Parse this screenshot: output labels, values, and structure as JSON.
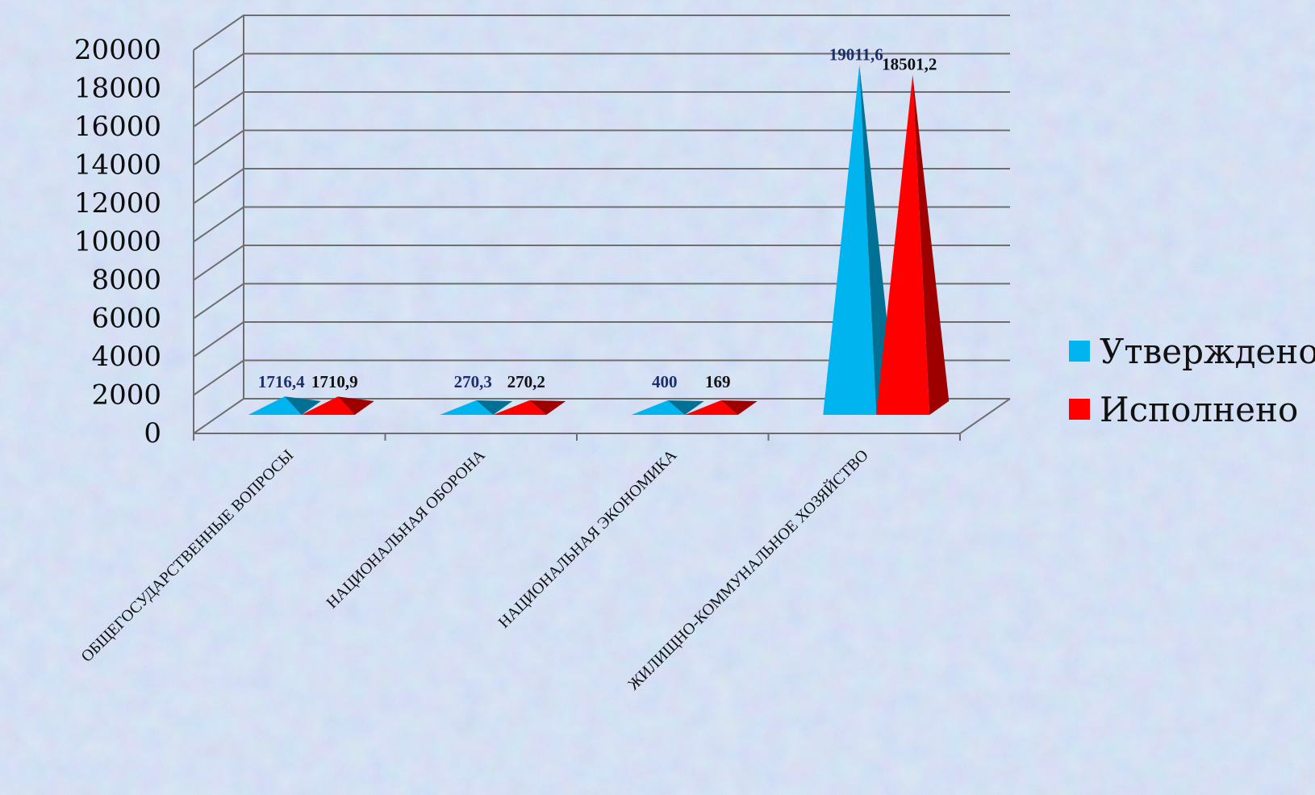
{
  "chart_data": {
    "type": "bar",
    "bar_shape": "pyramid-3d",
    "categories": [
      "ОБЩЕГОСУДАРСТВЕННЫЕ ВОПРОСЫ",
      "НАЦИОНАЛЬНАЯ ОБОРОНА",
      "НАЦИОНАЛЬНАЯ ЭКОНОМИКА",
      "ЖИЛИЩНО-КОММУНАЛЬНОЕ ХОЗЯЙСТВО"
    ],
    "series": [
      {
        "name": "Утверждено",
        "color": "#00b4ef",
        "label_color": "#1b2f6b",
        "values": [
          1716.4,
          270.3,
          400,
          19011.6
        ],
        "labels": [
          "1716,4",
          "270,3",
          "400",
          "19011,6"
        ]
      },
      {
        "name": "Исполнено",
        "color": "#ff0000",
        "label_color": "#111111",
        "values": [
          1710.9,
          270.2,
          169,
          18501.2
        ],
        "labels": [
          "1710,9",
          "270,2",
          "169",
          "18501,2"
        ]
      }
    ],
    "ylim": [
      0,
      20000
    ],
    "yticks": [
      0,
      2000,
      4000,
      6000,
      8000,
      10000,
      12000,
      14000,
      16000,
      18000,
      20000
    ],
    "grid": true,
    "legend_position": "right"
  }
}
